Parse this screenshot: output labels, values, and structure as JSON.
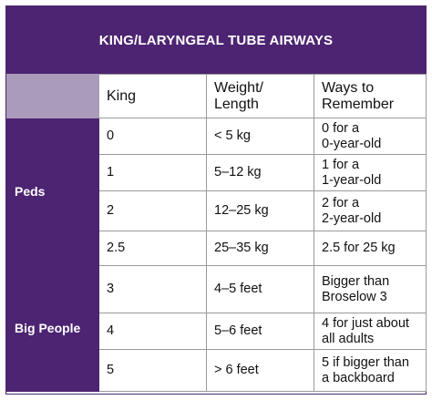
{
  "title": "KING/LARYNGEAL TUBE AIRWAYS",
  "headers": {
    "king": "King",
    "weight": "Weight/\nLength",
    "ways": "Ways to\nRemember"
  },
  "groups": {
    "peds": "Peds",
    "big_people": "Big People"
  },
  "rows": [
    {
      "king": "0",
      "weight": "< 5 kg",
      "ways": "0 for a\n0-year-old"
    },
    {
      "king": "1",
      "weight": "5–12 kg",
      "ways": "1 for a\n1-year-old"
    },
    {
      "king": "2",
      "weight": "12–25 kg",
      "ways": "2 for a\n2-year-old"
    },
    {
      "king": "2.5",
      "weight": "25–35 kg",
      "ways": "2.5 for 25 kg"
    },
    {
      "king": "3",
      "weight": "4–5 feet",
      "ways": "Bigger than\nBroselow 3"
    },
    {
      "king": "4",
      "weight": "5–6 feet",
      "ways": "4 for just about\nall adults"
    },
    {
      "king": "5",
      "weight": "> 6 feet",
      "ways": "5 if bigger than\na backboard"
    }
  ],
  "colors": {
    "header_purple": "#4d2472",
    "corner_lavender": "#a99bb9"
  }
}
